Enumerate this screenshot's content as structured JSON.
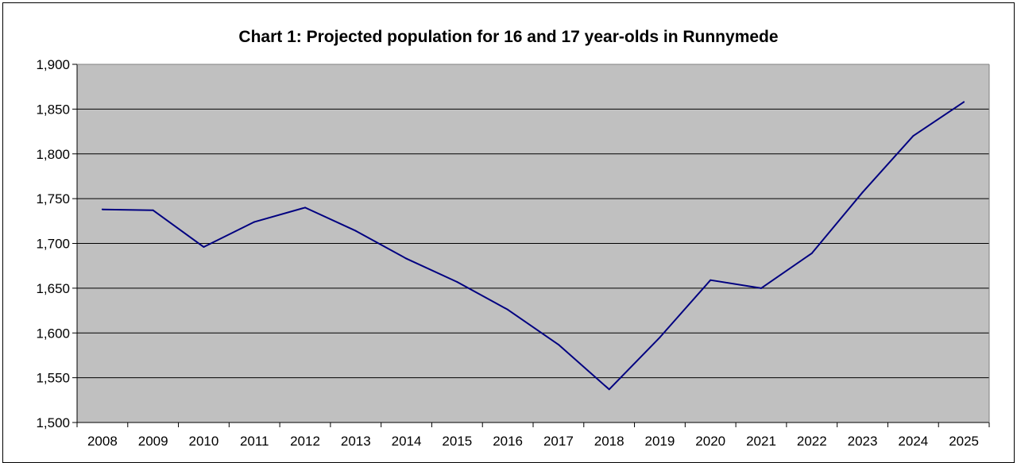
{
  "chart_data": {
    "type": "line",
    "title": "Chart 1: Projected population for 16 and 17 year-olds in Runnymede",
    "xlabel": "",
    "ylabel": "",
    "categories": [
      "2008",
      "2009",
      "2010",
      "2011",
      "2012",
      "2013",
      "2014",
      "2015",
      "2016",
      "2017",
      "2018",
      "2019",
      "2020",
      "2021",
      "2022",
      "2023",
      "2024",
      "2025"
    ],
    "series": [
      {
        "values": [
          1738,
          1737,
          1696,
          1724,
          1740,
          1714,
          1683,
          1657,
          1626,
          1587,
          1537,
          1595,
          1659,
          1650,
          1689,
          1757,
          1820,
          1858
        ]
      }
    ],
    "ylim": [
      1500,
      1900
    ],
    "yticks": [
      1500,
      1550,
      1600,
      1650,
      1700,
      1750,
      1800,
      1850,
      1900
    ],
    "ytick_labels": [
      "1,500",
      "1,550",
      "1,600",
      "1,650",
      "1,700",
      "1,750",
      "1,800",
      "1,850",
      "1,900"
    ],
    "grid": true,
    "legend": "none",
    "colors": {
      "plot_background": "#c0c0c0",
      "line": "#000080",
      "gridline": "#000000"
    }
  }
}
